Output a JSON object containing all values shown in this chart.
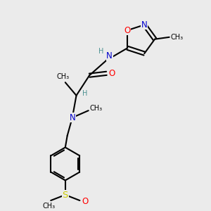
{
  "bg_color": "#ebebeb",
  "atom_colors": {
    "C": "#000000",
    "N": "#0000cc",
    "O": "#ff0000",
    "S": "#cccc00",
    "H": "#4a9090"
  },
  "bond_color": "#000000",
  "bond_width": 1.5,
  "font_size_atom": 8.5,
  "font_size_small": 7.0,
  "xlim": [
    0,
    10
  ],
  "ylim": [
    0,
    10
  ]
}
